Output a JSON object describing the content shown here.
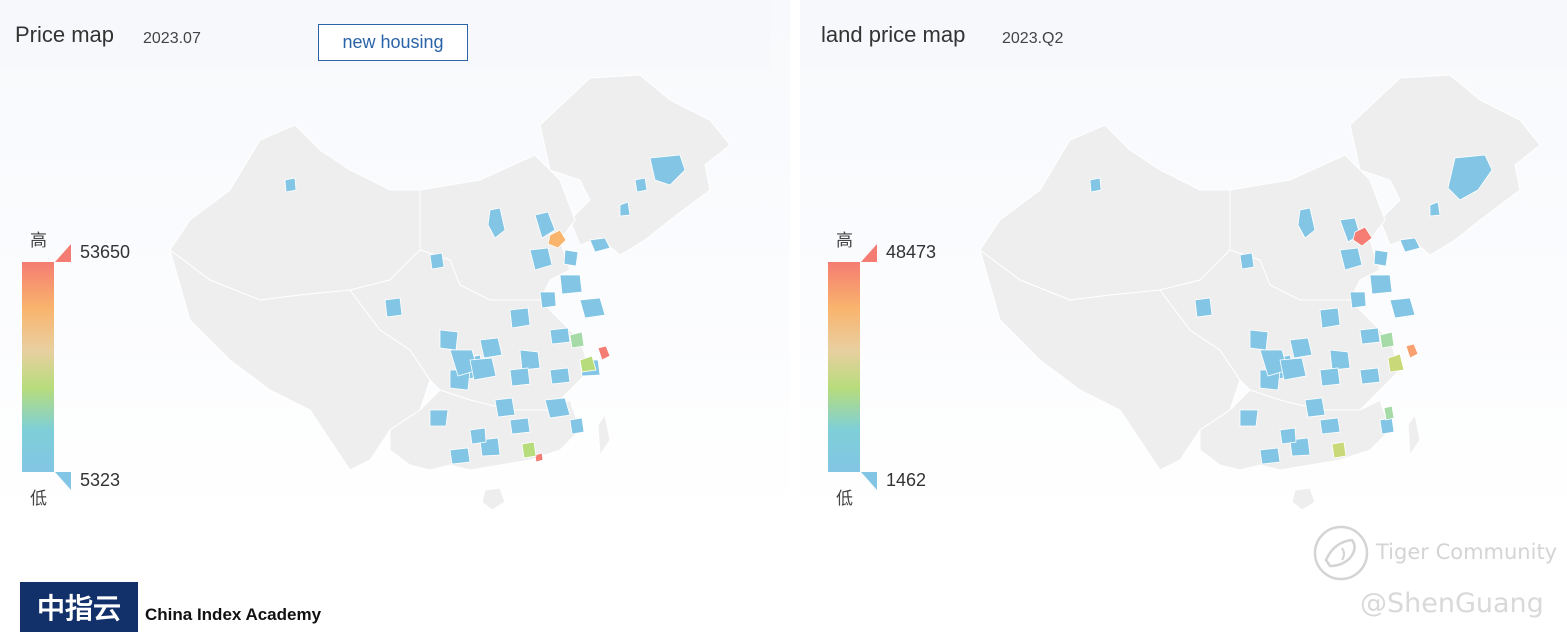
{
  "left_panel": {
    "title": "Price map",
    "period": "2023.07",
    "toggle_label": "new housing",
    "legend": {
      "high_label": "高",
      "low_label": "低",
      "max": "53650",
      "min": "5323"
    }
  },
  "right_panel": {
    "title": "land price map",
    "period": "2023.Q2",
    "legend": {
      "high_label": "高",
      "low_label": "低",
      "max": "48473",
      "min": "1462"
    }
  },
  "colors": {
    "scale_high": "#f47c72",
    "scale_mid_high": "#f9b46d",
    "scale_mid": "#b7dc7c",
    "scale_low": "#82c5e5",
    "map_base": "#eeeeee",
    "brand": "#12306a"
  },
  "footer": {
    "logo_text": "中指云",
    "company_name": "China Index Academy"
  },
  "watermark": {
    "line1": "Tiger Community",
    "line2": "@ShenGuang"
  }
}
